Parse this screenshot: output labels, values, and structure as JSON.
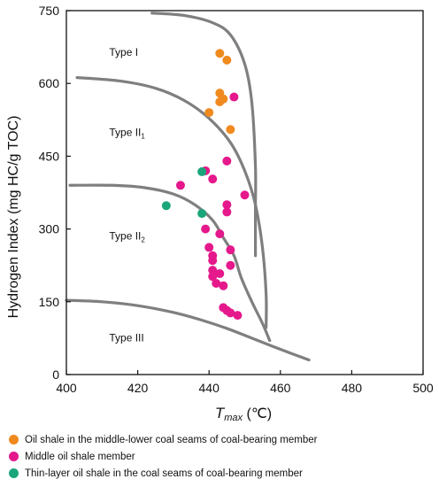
{
  "chart_data": {
    "type": "scatter",
    "xlabel_main": "T",
    "xlabel_sub": "max",
    "xlabel_unit": " (℃)",
    "ylabel": "Hydrogen Index (mg HC/g TOC)",
    "xlim": [
      400,
      500
    ],
    "ylim": [
      0,
      750
    ],
    "xticks": [
      400,
      420,
      440,
      460,
      480,
      500
    ],
    "yticks": [
      0,
      150,
      300,
      450,
      600,
      750
    ],
    "type_labels": [
      {
        "main": "Type I",
        "sub": ""
      },
      {
        "main": "Type II",
        "sub": "1"
      },
      {
        "main": "Type II",
        "sub": "2"
      },
      {
        "main": "Type III",
        "sub": ""
      }
    ],
    "boundary_curves": [
      [
        [
          424,
          745
        ],
        [
          433,
          740
        ],
        [
          441,
          725
        ],
        [
          446,
          700
        ],
        [
          450,
          640
        ],
        [
          452,
          560
        ],
        [
          453,
          430
        ],
        [
          453,
          340
        ],
        [
          453,
          245
        ]
      ],
      [
        [
          403,
          612
        ],
        [
          415,
          605
        ],
        [
          425,
          590
        ],
        [
          433,
          565
        ],
        [
          440,
          528
        ],
        [
          446,
          478
        ],
        [
          450,
          420
        ],
        [
          453,
          350
        ],
        [
          455,
          260
        ],
        [
          456,
          165
        ],
        [
          456,
          97
        ]
      ],
      [
        [
          401,
          390
        ],
        [
          413,
          390
        ],
        [
          422,
          385
        ],
        [
          430,
          372
        ],
        [
          436,
          350
        ],
        [
          441,
          318
        ],
        [
          444,
          282
        ],
        [
          447,
          245
        ],
        [
          449,
          200
        ],
        [
          452,
          150
        ],
        [
          455,
          105
        ],
        [
          457,
          70
        ]
      ],
      [
        [
          400,
          153
        ],
        [
          410,
          150
        ],
        [
          420,
          142
        ],
        [
          430,
          128
        ],
        [
          438,
          112
        ],
        [
          445,
          95
        ],
        [
          452,
          75
        ],
        [
          460,
          52
        ],
        [
          468,
          30
        ]
      ]
    ],
    "series": [
      {
        "name": "Oil shale in the middle-lower coal seams of coal-bearing member",
        "color": "#f08a1e",
        "points": [
          [
            443,
            662
          ],
          [
            445,
            648
          ],
          [
            443,
            580
          ],
          [
            444,
            568
          ],
          [
            443,
            562
          ],
          [
            440,
            540
          ],
          [
            446,
            505
          ]
        ]
      },
      {
        "name": "Middle oil shale member",
        "color": "#e5188c",
        "points": [
          [
            447,
            572
          ],
          [
            445,
            440
          ],
          [
            439,
            420
          ],
          [
            441,
            403
          ],
          [
            432,
            390
          ],
          [
            450,
            370
          ],
          [
            445,
            350
          ],
          [
            445,
            335
          ],
          [
            439,
            300
          ],
          [
            443,
            290
          ],
          [
            440,
            262
          ],
          [
            446,
            257
          ],
          [
            441,
            245
          ],
          [
            441,
            235
          ],
          [
            446,
            225
          ],
          [
            441,
            215
          ],
          [
            441,
            202
          ],
          [
            443,
            208
          ],
          [
            442,
            188
          ],
          [
            444,
            183
          ],
          [
            444,
            138
          ],
          [
            445,
            132
          ],
          [
            446,
            127
          ],
          [
            448,
            122
          ]
        ]
      },
      {
        "name": "Thin-layer oil shale in the coal seams of coal-bearing member",
        "color": "#1aa57a",
        "points": [
          [
            438,
            418
          ],
          [
            428,
            348
          ],
          [
            438,
            332
          ]
        ]
      }
    ]
  }
}
